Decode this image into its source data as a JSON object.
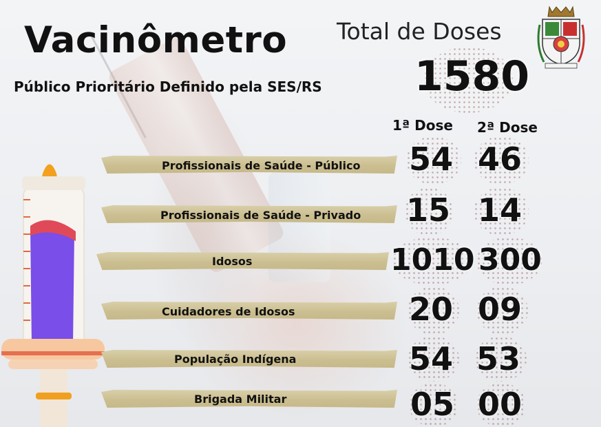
{
  "header": {
    "title": "Vacinômetro",
    "subtitle": "Público Prioritário Definido pela SES/RS",
    "total_label": "Total de Doses",
    "total_value": "1580"
  },
  "columns": {
    "dose1": "1ª Dose",
    "dose2": "2ª Dose"
  },
  "rows": [
    {
      "label": "Profissionais de Saúde - Público",
      "dose1": "54",
      "dose2": "46"
    },
    {
      "label": "Profissionais de Saúde - Privado",
      "dose1": "15",
      "dose2": "14"
    },
    {
      "label": "Idosos",
      "dose1": "1010",
      "dose2": "300"
    },
    {
      "label": "Cuidadores de Idosos",
      "dose1": "20",
      "dose2": "09"
    },
    {
      "label": "População Indígena",
      "dose1": "54",
      "dose2": "53"
    },
    {
      "label": "Brigada Militar",
      "dose1": "05",
      "dose2": "00"
    }
  ],
  "colors": {
    "band": "#cbbf92",
    "syringe_liquid": "#7a4ee8",
    "syringe_accent": "#f0a020",
    "syringe_rim": "#e05050"
  },
  "icons": {
    "syringe": "syringe-illustration",
    "crest": "municipal-coat-of-arms"
  }
}
